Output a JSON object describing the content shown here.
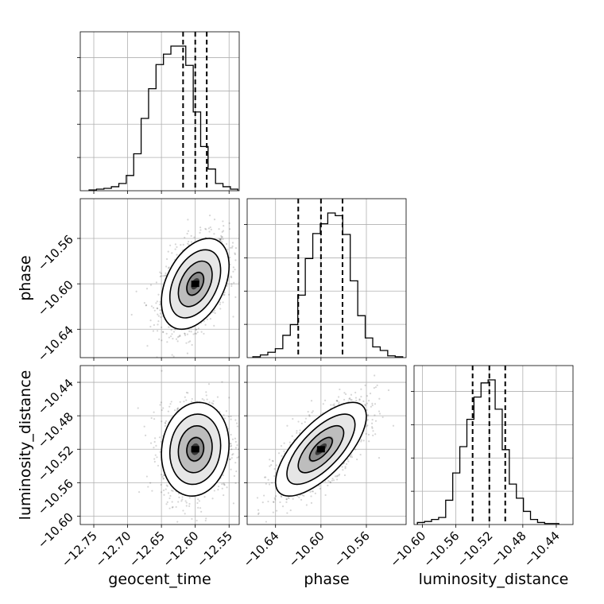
{
  "chart_data": {
    "type": "corner",
    "parameters": [
      "geocent_time",
      "phase",
      "luminosity_distance"
    ],
    "ranges": {
      "geocent_time": [
        -12.77,
        -12.535
      ],
      "phase": [
        -10.665,
        -10.525
      ],
      "luminosity_distance": [
        -10.61,
        -10.42
      ]
    },
    "ticks": {
      "geocent_time": [
        -12.75,
        -12.7,
        -12.65,
        -12.6,
        -12.55
      ],
      "phase": [
        -10.64,
        -10.6,
        -10.56
      ],
      "luminosity_distance": [
        -10.6,
        -10.56,
        -10.52,
        -10.48,
        -10.44
      ]
    },
    "tick_labels": {
      "geocent_time": [
        "−12.75",
        "−12.70",
        "−12.65",
        "−12.60",
        "−12.55"
      ],
      "phase": [
        "−10.64",
        "−10.60",
        "−10.56"
      ],
      "luminosity_distance": [
        "−10.60",
        "−10.56",
        "−10.52",
        "−10.48",
        "−10.44"
      ]
    },
    "quantiles": {
      "geocent_time": [
        -12.618,
        -12.6,
        -12.583
      ],
      "phase": [
        -10.62,
        -10.6,
        -10.581
      ],
      "luminosity_distance": [
        -10.54,
        -10.52,
        -10.501
      ]
    },
    "histograms": {
      "geocent_time": {
        "edges_range": [
          -12.757,
          -12.537
        ],
        "counts": [
          1,
          2,
          3,
          5,
          9,
          19,
          46,
          90,
          127,
          157,
          170,
          180,
          180,
          156,
          98,
          55,
          27,
          9,
          5,
          2
        ]
      },
      "phase": {
        "edges_range": [
          -10.66,
          -10.528
        ],
        "counts": [
          1,
          3,
          6,
          10,
          25,
          37,
          70,
          111,
          139,
          150,
          162,
          159,
          138,
          86,
          47,
          22,
          12,
          8,
          2,
          1
        ]
      },
      "luminosity_distance": {
        "edges_range": [
          -10.606,
          -10.437
        ],
        "counts": [
          2,
          3,
          5,
          7,
          24,
          51,
          77,
          104,
          126,
          140,
          143,
          114,
          74,
          40,
          26,
          13,
          5,
          2,
          1,
          1
        ]
      }
    },
    "joint": [
      {
        "x": "geocent_time",
        "y": "phase",
        "mean": [
          -12.6,
          -10.6
        ],
        "std": [
          0.025,
          0.02
        ],
        "corr": 0.4
      },
      {
        "x": "geocent_time",
        "y": "luminosity_distance",
        "mean": [
          -12.6,
          -10.52
        ],
        "std": [
          0.025,
          0.028
        ],
        "corr": 0.1
      },
      {
        "x": "phase",
        "y": "luminosity_distance",
        "mean": [
          -10.6,
          -10.52
        ],
        "std": [
          0.02,
          0.028
        ],
        "corr": 0.7
      }
    ],
    "grid": true
  }
}
